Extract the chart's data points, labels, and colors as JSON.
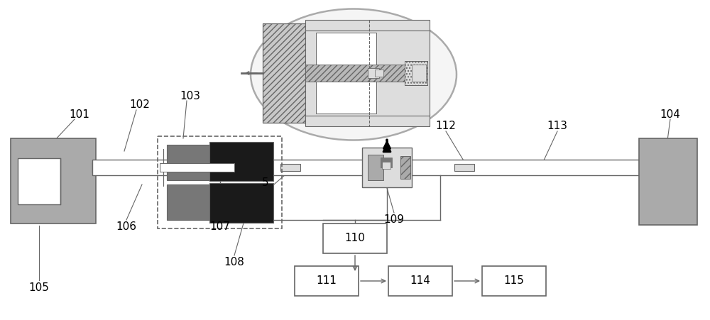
{
  "bg_color": "#ffffff",
  "lc": "#666666",
  "dg": "#1a1a1a",
  "mg": "#777777",
  "lg": "#aaaaaa",
  "vlg": "#dddddd",
  "bk": "#000000",
  "label_fontsize": 11,
  "fig_w": 10.0,
  "fig_h": 4.51
}
